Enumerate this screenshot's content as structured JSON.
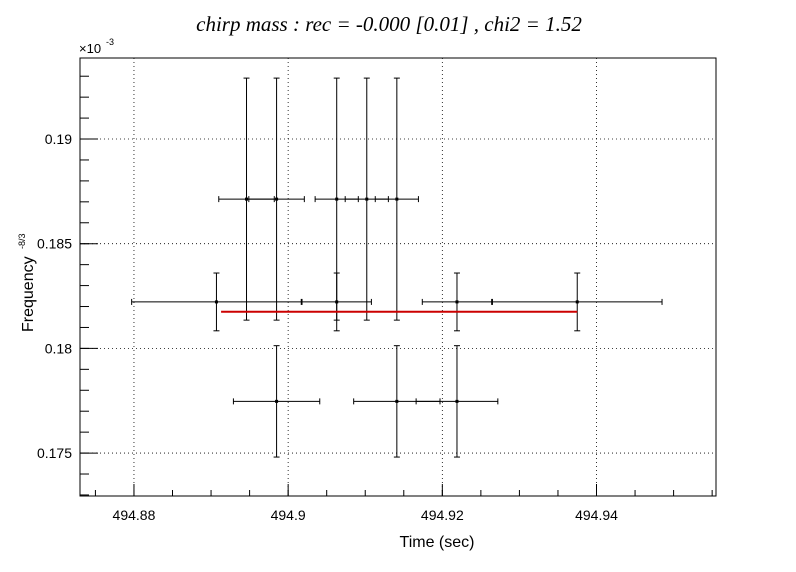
{
  "chart_data": {
    "type": "scatter",
    "title": "chirp mass : rec = -0.000 [0.01] , chi2 = 1.52",
    "xlabel": "Time (sec)",
    "ylabel_base": "Frequency",
    "ylabel_sup": "-8/3",
    "y_exponent_prefix": "×10",
    "y_exponent": "-3",
    "xlim": [
      494.873,
      494.9555
    ],
    "ylim": [
      0.17295,
      0.19387
    ],
    "x_major_ticks": [
      494.88,
      494.9,
      494.92,
      494.94
    ],
    "x_tick_labels": [
      "494.88",
      "494.9",
      "494.92",
      "494.94"
    ],
    "y_major_ticks": [
      0.175,
      0.18,
      0.185,
      0.19
    ],
    "y_tick_labels": [
      "0.175",
      "0.18",
      "0.185",
      "0.19"
    ],
    "grid": true,
    "points": [
      {
        "x": 494.8907,
        "y": 0.18222,
        "xerr": 0.011,
        "yerr": 0.00138
      },
      {
        "x": 494.8946,
        "y": 0.18713,
        "xerr": 0.0036,
        "yerr": 0.00578
      },
      {
        "x": 494.8985,
        "y": 0.18713,
        "xerr": 0.0036,
        "yerr": 0.00578
      },
      {
        "x": 494.8985,
        "y": 0.17747,
        "xerr": 0.0056,
        "yerr": 0.00266
      },
      {
        "x": 494.9063,
        "y": 0.18713,
        "xerr": 0.0028,
        "yerr": 0.00578
      },
      {
        "x": 494.9063,
        "y": 0.18222,
        "xerr": 0.0045,
        "yerr": 0.00138
      },
      {
        "x": 494.9102,
        "y": 0.18713,
        "xerr": 0.0028,
        "yerr": 0.00578
      },
      {
        "x": 494.9141,
        "y": 0.18713,
        "xerr": 0.0028,
        "yerr": 0.00578
      },
      {
        "x": 494.9141,
        "y": 0.17747,
        "xerr": 0.0056,
        "yerr": 0.00266
      },
      {
        "x": 494.9219,
        "y": 0.18222,
        "xerr": 0.0045,
        "yerr": 0.00138
      },
      {
        "x": 494.9219,
        "y": 0.17747,
        "xerr": 0.0053,
        "yerr": 0.00266
      },
      {
        "x": 494.9375,
        "y": 0.18222,
        "xerr": 0.011,
        "yerr": 0.00138
      }
    ],
    "fit_line": {
      "x0": 494.8913,
      "x1": 494.9375,
      "y": 0.18175,
      "color": "#cc0000"
    }
  }
}
